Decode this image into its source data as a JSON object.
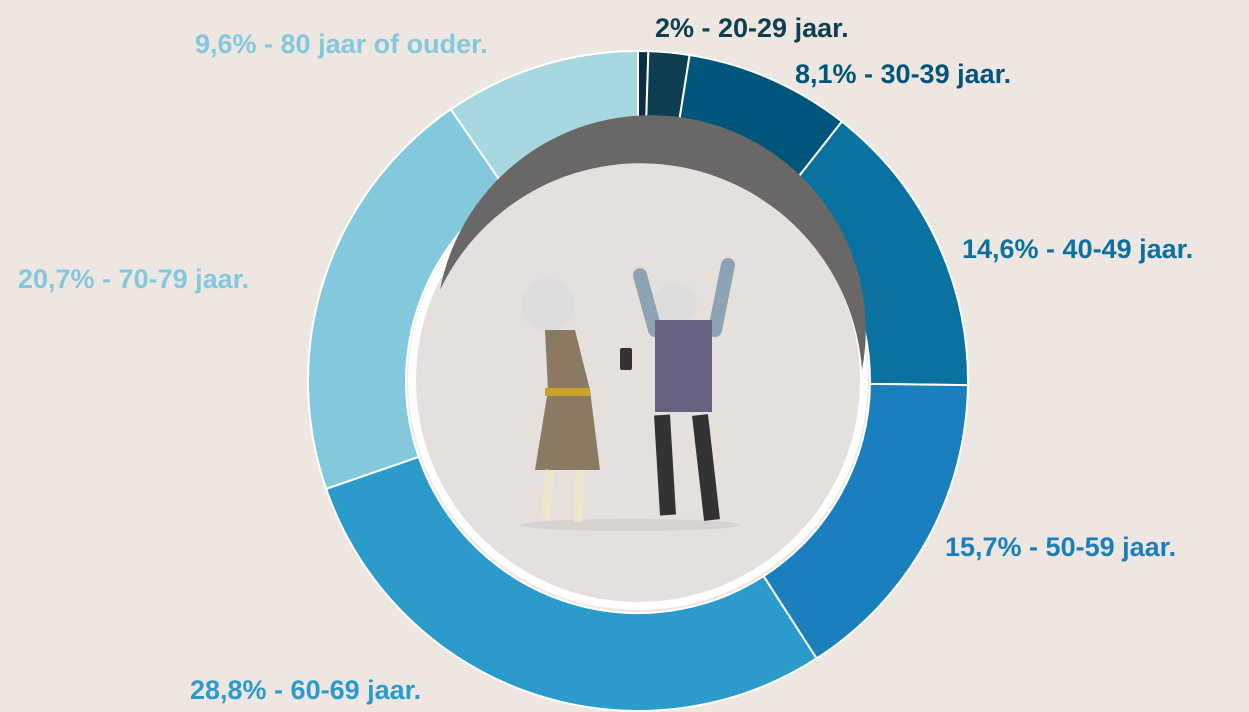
{
  "chart_data": {
    "type": "donut",
    "values": [
      0.5,
      2,
      8.1,
      14.6,
      15.7,
      28.8,
      20.7,
      9.6
    ],
    "value_labels": [
      null,
      "2% - 20-29 jaar.",
      "8,1% - 30-39 jaar.",
      "14,6% - 40-49 jaar.",
      "15,7% - 50-59 jaar.",
      "28,8% - 60-69 jaar.",
      "20,7% - 70-79 jaar.",
      "9,6% - 80 jaar of ouder."
    ],
    "colors": [
      "#0b2f3e",
      "#0e3e52",
      "#00567a",
      "#0a72a0",
      "#1980bd",
      "#2a9bcb",
      "#83c8dc",
      "#a7d8e0"
    ]
  }
}
